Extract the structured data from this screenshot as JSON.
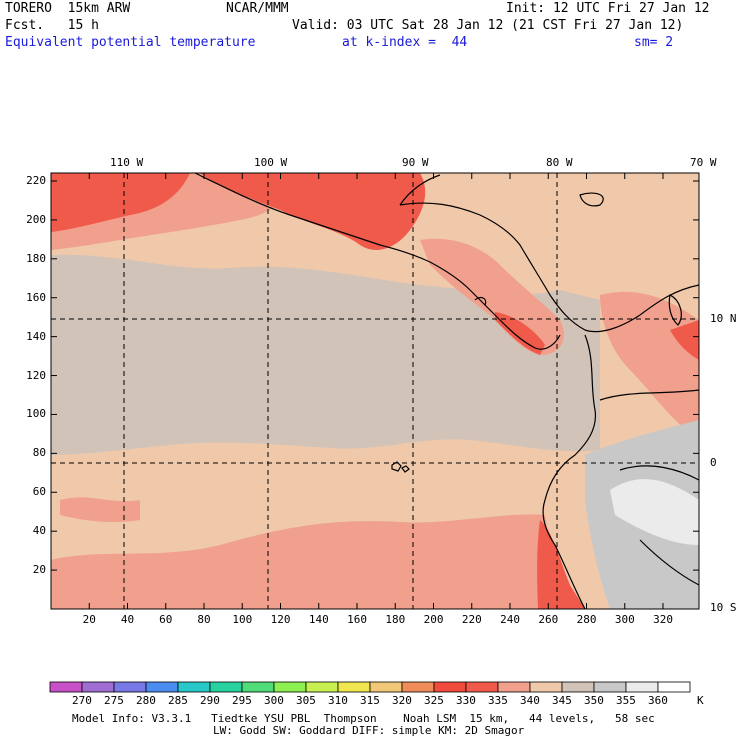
{
  "header": {
    "model": "TORERO  15km ARW",
    "org": "NCAR/MMM",
    "init": "Init: 12 UTC Fri 27 Jan 12",
    "fcst": "Fcst.   15 h",
    "valid": "Valid: 03 UTC Sat 28 Jan 12 (21 CST Fri 27 Jan 12)",
    "field": "Equivalent potential temperature",
    "level": "at k-index =  44",
    "smooth": "sm= 2"
  },
  "lon_labels": [
    "110 W",
    "100 W",
    "90 W",
    "80 W",
    "70 W"
  ],
  "lat_labels": [
    "10 N",
    "0",
    "10 S"
  ],
  "y_ticks": [
    "220",
    "200",
    "180",
    "160",
    "140",
    "120",
    "100",
    "80",
    "60",
    "40",
    "20"
  ],
  "x_ticks": [
    "20",
    "40",
    "60",
    "80",
    "100",
    "120",
    "140",
    "160",
    "180",
    "200",
    "220",
    "240",
    "260",
    "280",
    "300",
    "320"
  ],
  "colorbar": {
    "labels": [
      "270",
      "275",
      "280",
      "285",
      "290",
      "295",
      "300",
      "305",
      "310",
      "315",
      "320",
      "325",
      "330",
      "335",
      "340",
      "345",
      "350",
      "355",
      "360"
    ],
    "unit": "K",
    "colors": [
      "#c850c8",
      "#a06ed2",
      "#7878e6",
      "#4b8cf0",
      "#28c8c8",
      "#28d2a0",
      "#50dc78",
      "#8cf050",
      "#c8f050",
      "#f0e650",
      "#f0c878",
      "#f08c5a",
      "#f04b3c",
      "#f05a4b",
      "#f0a08c",
      "#f0c8aa",
      "#d2c3b9",
      "#c8c8c8",
      "#ebebeb",
      "#ffffff"
    ]
  },
  "footer": {
    "line1": "Model Info: V3.3.1   Tiedtke YSU PBL  Thompson    Noah LSM  15 km,   44 levels,   58 sec",
    "line2": "LW: Godd SW: Goddard DIFF: simple KM: 2D Smagor"
  },
  "map_colors": {
    "background": "#f0c8aa",
    "cool": "#d2c3b9",
    "warm": "#f0a08c",
    "hot": "#f05a4b",
    "gray": "#c8c8c8",
    "light": "#ebebeb",
    "coast": "#000000"
  }
}
